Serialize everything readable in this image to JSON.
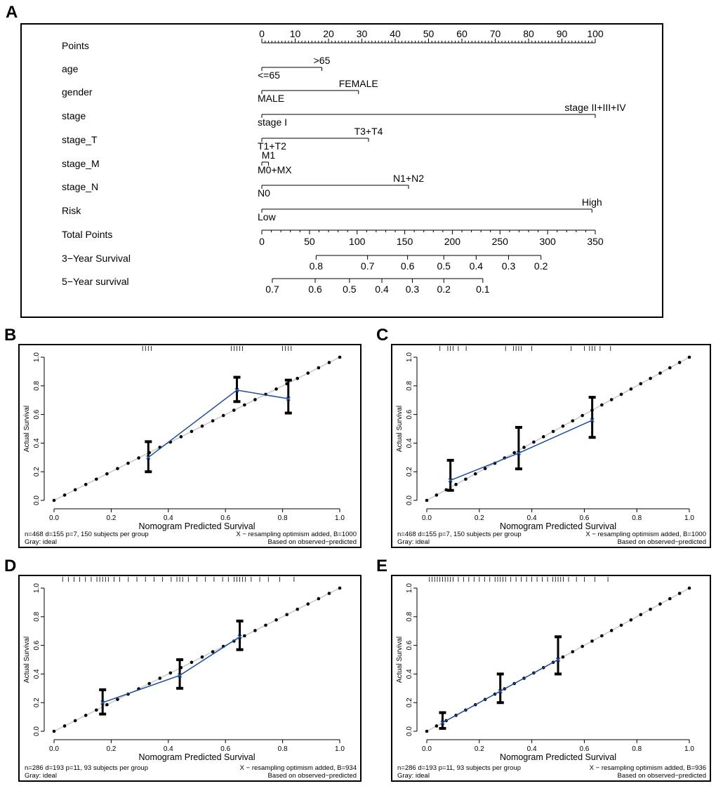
{
  "panels": [
    {
      "letter": "A"
    },
    {
      "letter": "B"
    },
    {
      "letter": "C"
    },
    {
      "letter": "D"
    },
    {
      "letter": "E"
    }
  ],
  "chart_data": [
    {
      "type": "nomogram",
      "panel": "A",
      "points_scale": {
        "label": "Points",
        "range": [
          0,
          100
        ],
        "ticks": [
          0,
          10,
          20,
          30,
          40,
          50,
          60,
          70,
          80,
          90,
          100
        ]
      },
      "variables": [
        {
          "name": "age",
          "max_points": 18,
          "levels": [
            {
              "label": "<=65",
              "points": 0
            },
            {
              "label": ">65",
              "points": 18
            }
          ]
        },
        {
          "name": "gender",
          "max_points": 29,
          "levels": [
            {
              "label": "MALE",
              "points": 0
            },
            {
              "label": "FEMALE",
              "points": 29
            }
          ]
        },
        {
          "name": "stage",
          "max_points": 100,
          "levels": [
            {
              "label": "stage I",
              "points": 0
            },
            {
              "label": "stage II+III+IV",
              "points": 100
            }
          ]
        },
        {
          "name": "stage_T",
          "max_points": 32,
          "levels": [
            {
              "label": "T1+T2",
              "points": 0
            },
            {
              "label": "T3+T4",
              "points": 32
            }
          ]
        },
        {
          "name": "stage_M",
          "max_points": 2,
          "levels": [
            {
              "label": "M0+MX",
              "points": 0
            },
            {
              "label": "M1",
              "points": 2
            }
          ]
        },
        {
          "name": "stage_N",
          "max_points": 44,
          "levels": [
            {
              "label": "N0",
              "points": 0
            },
            {
              "label": "N1+N2",
              "points": 44
            }
          ]
        },
        {
          "name": "Risk",
          "max_points": 99,
          "levels": [
            {
              "label": "Low",
              "points": 0
            },
            {
              "label": "High",
              "points": 99
            }
          ]
        }
      ],
      "total_points": {
        "label": "Total Points",
        "range": [
          0,
          350
        ],
        "ticks": [
          0,
          50,
          100,
          150,
          200,
          250,
          300,
          350
        ]
      },
      "survival_axes": [
        {
          "label": "3−Year Survival",
          "ticks": [
            {
              "label": "0.8",
              "total": 57
            },
            {
              "label": "0.7",
              "total": 111
            },
            {
              "label": "0.6",
              "total": 153
            },
            {
              "label": "0.5",
              "total": 191
            },
            {
              "label": "0.4",
              "total": 225
            },
            {
              "label": "0.3",
              "total": 259
            },
            {
              "label": "0.2",
              "total": 293
            }
          ],
          "line_range": [
            57,
            293
          ]
        },
        {
          "label": "5−Year survival",
          "ticks": [
            {
              "label": "0.7",
              "total": 11
            },
            {
              "label": "0.6",
              "total": 56
            },
            {
              "label": "0.5",
              "total": 92
            },
            {
              "label": "0.4",
              "total": 126
            },
            {
              "label": "0.3",
              "total": 158
            },
            {
              "label": "0.2",
              "total": 191
            },
            {
              "label": "0.1",
              "total": 232
            }
          ],
          "line_range": [
            11,
            232
          ]
        }
      ]
    },
    {
      "type": "calibration",
      "panel": "B",
      "xlabel": "Nomogram Predicted Survival",
      "ylabel": "Actual Survival",
      "xlim": [
        0,
        1
      ],
      "ylim": [
        0,
        1
      ],
      "xticks": [
        "0.0",
        "0.2",
        "0.4",
        "0.6",
        "0.8",
        "1.0"
      ],
      "yticks": [
        "0.0",
        "0.2",
        "0.4",
        "0.6",
        "0.8",
        "1.0"
      ],
      "points": [
        {
          "predicted": 0.33,
          "observed": 0.3,
          "lower": 0.2,
          "upper": 0.41
        },
        {
          "predicted": 0.64,
          "observed": 0.77,
          "lower": 0.69,
          "upper": 0.86
        },
        {
          "predicted": 0.82,
          "observed": 0.71,
          "lower": 0.61,
          "upper": 0.84
        }
      ],
      "rug_ticks": [
        0.31,
        0.32,
        0.33,
        0.34,
        0.62,
        0.63,
        0.64,
        0.65,
        0.66,
        0.8,
        0.81,
        0.82,
        0.83
      ],
      "note_left_1": "n=468 d=155 p=7, 150 subjects per group",
      "note_left_2": "Gray: ideal",
      "note_right_1": "X − resampling optimism added, B=1000",
      "note_right_2": "Based on observed−predicted"
    },
    {
      "type": "calibration",
      "panel": "C",
      "xlabel": "Nomogram Predicted Survival",
      "ylabel": "Actual Survival",
      "xlim": [
        0,
        1
      ],
      "ylim": [
        0,
        1
      ],
      "xticks": [
        "0.0",
        "0.2",
        "0.4",
        "0.6",
        "0.8",
        "1.0"
      ],
      "yticks": [
        "0.0",
        "0.2",
        "0.4",
        "0.6",
        "0.8",
        "1.0"
      ],
      "points": [
        {
          "predicted": 0.09,
          "observed": 0.14,
          "lower": 0.07,
          "upper": 0.28
        },
        {
          "predicted": 0.35,
          "observed": 0.33,
          "lower": 0.22,
          "upper": 0.51
        },
        {
          "predicted": 0.63,
          "observed": 0.56,
          "lower": 0.44,
          "upper": 0.72
        }
      ],
      "rug_ticks": [
        0.05,
        0.08,
        0.09,
        0.1,
        0.12,
        0.15,
        0.3,
        0.33,
        0.34,
        0.35,
        0.36,
        0.4,
        0.55,
        0.6,
        0.62,
        0.63,
        0.64,
        0.66,
        0.7
      ],
      "note_left_1": "n=468 d=155 p=7, 150 subjects per group",
      "note_left_2": "Gray: ideal",
      "note_right_1": "X − resampling optimism added, B=1000",
      "note_right_2": "Based on observed−predicted"
    },
    {
      "type": "calibration",
      "panel": "D",
      "xlabel": "Nomogram Predicted Survival",
      "ylabel": "Actual Survival",
      "xlim": [
        0,
        1
      ],
      "ylim": [
        0,
        1
      ],
      "xticks": [
        "0.0",
        "0.2",
        "0.4",
        "0.6",
        "0.8",
        "1.0"
      ],
      "yticks": [
        "0.0",
        "0.2",
        "0.4",
        "0.6",
        "0.8",
        "1.0"
      ],
      "points": [
        {
          "predicted": 0.17,
          "observed": 0.2,
          "lower": 0.12,
          "upper": 0.29
        },
        {
          "predicted": 0.44,
          "observed": 0.39,
          "lower": 0.3,
          "upper": 0.5
        },
        {
          "predicted": 0.65,
          "observed": 0.66,
          "lower": 0.57,
          "upper": 0.77
        }
      ],
      "rug_ticks": [
        0.03,
        0.05,
        0.07,
        0.09,
        0.11,
        0.13,
        0.15,
        0.16,
        0.17,
        0.18,
        0.19,
        0.21,
        0.23,
        0.26,
        0.29,
        0.32,
        0.35,
        0.38,
        0.41,
        0.43,
        0.44,
        0.45,
        0.47,
        0.5,
        0.53,
        0.56,
        0.59,
        0.61,
        0.63,
        0.64,
        0.65,
        0.66,
        0.67,
        0.69,
        0.72,
        0.75,
        0.79,
        0.84
      ],
      "note_left_1": "n=286 d=193 p=11, 93 subjects per group",
      "note_left_2": "Gray: ideal",
      "note_right_1": "X − resampling optimism added, B=934",
      "note_right_2": "Based on observed−predicted"
    },
    {
      "type": "calibration",
      "panel": "E",
      "xlabel": "Nomogram Predicted Survival",
      "ylabel": "Actual Survival",
      "xlim": [
        0,
        1
      ],
      "ylim": [
        0,
        1
      ],
      "xticks": [
        "0.0",
        "0.2",
        "0.4",
        "0.6",
        "0.8",
        "1.0"
      ],
      "yticks": [
        "0.0",
        "0.2",
        "0.4",
        "0.6",
        "0.8",
        "1.0"
      ],
      "points": [
        {
          "predicted": 0.06,
          "observed": 0.06,
          "lower": 0.02,
          "upper": 0.13
        },
        {
          "predicted": 0.28,
          "observed": 0.28,
          "lower": 0.2,
          "upper": 0.4
        },
        {
          "predicted": 0.5,
          "observed": 0.5,
          "lower": 0.4,
          "upper": 0.66
        }
      ],
      "rug_ticks": [
        0.01,
        0.02,
        0.03,
        0.04,
        0.05,
        0.06,
        0.07,
        0.08,
        0.09,
        0.1,
        0.12,
        0.14,
        0.16,
        0.18,
        0.2,
        0.22,
        0.24,
        0.26,
        0.27,
        0.28,
        0.29,
        0.3,
        0.32,
        0.34,
        0.36,
        0.38,
        0.4,
        0.42,
        0.44,
        0.46,
        0.48,
        0.49,
        0.5,
        0.51,
        0.52,
        0.54,
        0.57,
        0.6,
        0.64,
        0.69
      ],
      "note_left_1": "n=286 d=193 p=11, 93 subjects per group",
      "note_left_2": "Gray: ideal",
      "note_right_1": "X − resampling optimism added, B=936",
      "note_right_2": "Based on observed−predicted"
    }
  ],
  "colors": {
    "line": "#1f4e9c",
    "ideal": "#c8c8c8",
    "ink": "#000000"
  }
}
